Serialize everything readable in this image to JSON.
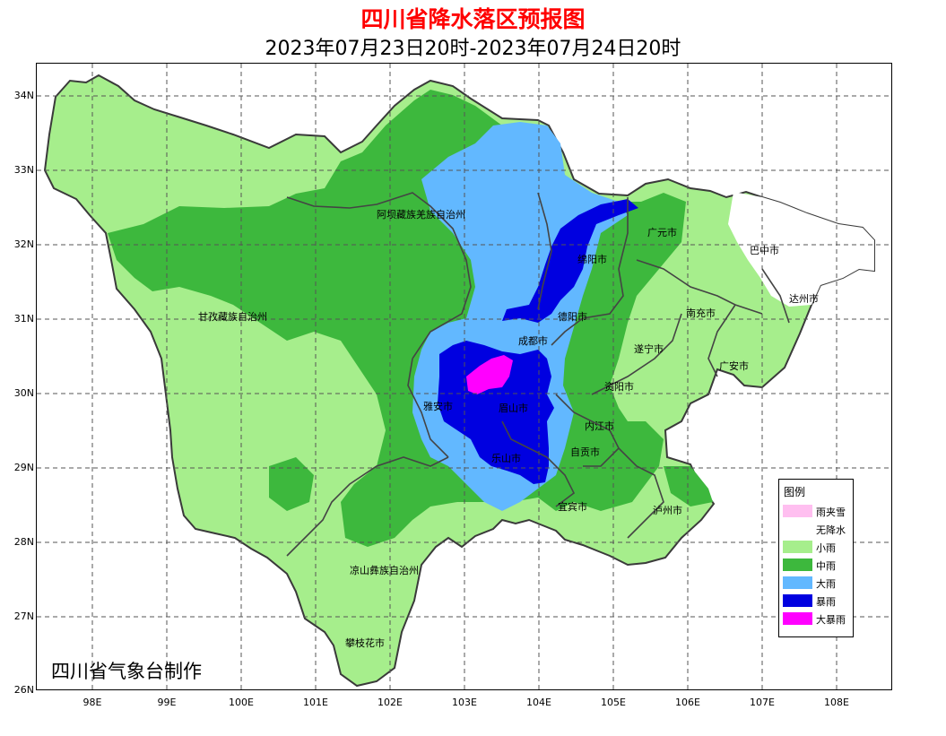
{
  "title": "四川省降水落区预报图",
  "subtitle": "2023年07月23日20时-2023年07月24日20时",
  "credit": "四川省气象台制作",
  "axes": {
    "lat_labels": [
      "34N",
      "33N",
      "32N",
      "31N",
      "30N",
      "29N",
      "28N",
      "27N",
      "26N"
    ],
    "lon_labels": [
      "98E",
      "99E",
      "100E",
      "101E",
      "102E",
      "103E",
      "104E",
      "105E",
      "106E",
      "107E",
      "108E"
    ]
  },
  "cities": {
    "aba": "阿坝藏族羌族自治州",
    "ganzi": "甘孜藏族自治州",
    "liangshan": "凉山彝族自治州",
    "panzhihua": "攀枝花市",
    "guangyuan": "广元市",
    "bazhong": "巴中市",
    "dazhou": "达州市",
    "mianyang": "绵阳市",
    "deyang": "德阳市",
    "nanchong": "南充市",
    "chengdu": "成都市",
    "suining": "遂宁市",
    "guangan": "广安市",
    "ziyang": "资阳市",
    "yaan": "雅安市",
    "meishan": "眉山市",
    "neijiang": "内江市",
    "leshan": "乐山市",
    "zigong": "自贡市",
    "yibin": "宜宾市",
    "luzhou": "泸州市"
  },
  "legend": {
    "title": "图例",
    "items": [
      {
        "label": "雨夹雪",
        "color": "#ffbff0"
      },
      {
        "label": "无降水",
        "color": "#ffffff"
      },
      {
        "label": "小雨",
        "color": "#a6ee8c"
      },
      {
        "label": "中雨",
        "color": "#3db83d"
      },
      {
        "label": "大雨",
        "color": "#62b8ff"
      },
      {
        "label": "暴雨",
        "color": "#0000e0"
      },
      {
        "label": "大暴雨",
        "color": "#ff00ff"
      }
    ]
  }
}
